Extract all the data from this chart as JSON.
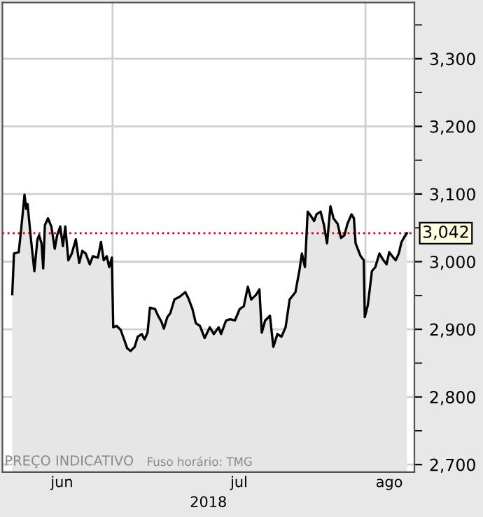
{
  "chart_data": {
    "type": "area",
    "x": [
      "2018-06-18T17:00",
      "2018-06-18T22:00",
      "2018-06-19T12:00",
      "2018-06-19T19:00",
      "2018-06-20T05:00",
      "2018-06-20T10:00",
      "2018-06-20T14:00",
      "2018-06-21T00:00",
      "2018-06-21T10:00",
      "2018-06-21T19:00",
      "2018-06-22T00:00",
      "2018-06-22T07:00",
      "2018-06-22T12:00",
      "2018-06-22T17:00",
      "2018-06-23T02:00",
      "2018-06-23T12:00",
      "2018-06-23T22:00",
      "2018-06-24T05:00",
      "2018-06-24T14:00",
      "2018-06-24T22:00",
      "2018-06-25T05:00",
      "2018-06-25T14:00",
      "2018-06-26T00:00",
      "2018-06-26T12:00",
      "2018-06-26T22:00",
      "2018-06-27T07:00",
      "2018-06-27T17:00",
      "2018-06-28T05:00",
      "2018-06-28T14:00",
      "2018-06-29T05:00",
      "2018-06-29T14:00",
      "2018-06-29T22:00",
      "2018-06-30T07:00",
      "2018-06-30T14:00",
      "2018-06-30T22:00",
      "2018-07-01T02:00",
      "2018-07-01T12:00",
      "2018-07-02T00:00",
      "2018-07-02T10:00",
      "2018-07-02T19:00",
      "2018-07-03T05:00",
      "2018-07-03T17:00",
      "2018-07-04T02:00",
      "2018-07-04T14:00",
      "2018-07-04T22:00",
      "2018-07-05T07:00",
      "2018-07-05T14:00",
      "2018-07-06T05:00",
      "2018-07-06T14:00",
      "2018-07-07T00:00",
      "2018-07-07T07:00",
      "2018-07-07T17:00",
      "2018-07-08T02:00",
      "2018-07-08T14:00",
      "2018-07-09T05:00",
      "2018-07-09T22:00",
      "2018-07-10T07:00",
      "2018-07-10T19:00",
      "2018-07-11T05:00",
      "2018-07-11T17:00",
      "2018-07-12T07:00",
      "2018-07-12T22:00",
      "2018-07-13T10:00",
      "2018-07-14T00:00",
      "2018-07-14T07:00",
      "2018-07-14T22:00",
      "2018-07-15T10:00",
      "2018-07-16T00:00",
      "2018-07-16T14:00",
      "2018-07-17T02:00",
      "2018-07-17T14:00",
      "2018-07-18T00:00",
      "2018-07-18T14:00",
      "2018-07-19T00:00",
      "2018-07-19T07:00",
      "2018-07-19T17:00",
      "2018-07-20T07:00",
      "2018-07-20T17:00",
      "2018-07-21T05:00",
      "2018-07-21T17:00",
      "2018-07-22T05:00",
      "2018-07-22T17:00",
      "2018-07-23T10:00",
      "2018-07-23T22:00",
      "2018-07-24T05:00",
      "2018-07-24T14:00",
      "2018-07-24T22:00",
      "2018-07-25T07:00",
      "2018-07-25T17:00",
      "2018-07-26T00:00",
      "2018-07-26T12:00",
      "2018-07-26T22:00",
      "2018-07-27T07:00",
      "2018-07-27T17:00",
      "2018-07-28T02:00",
      "2018-07-28T14:00",
      "2018-07-29T00:00",
      "2018-07-29T10:00",
      "2018-07-29T19:00",
      "2018-07-30T07:00",
      "2018-07-30T14:00",
      "2018-07-30T19:00",
      "2018-07-31T10:00",
      "2018-07-31T19:00",
      "2018-07-31T22:00",
      "2018-08-01T07:00",
      "2018-08-01T19:00",
      "2018-08-02T05:00",
      "2018-08-02T17:00",
      "2018-08-03T05:00",
      "2018-08-03T14:00",
      "2018-08-03T22:00",
      "2018-08-04T07:00",
      "2018-08-04T17:00",
      "2018-08-05T02:00",
      "2018-08-05T10:00",
      "2018-08-05T19:00",
      "2018-08-06T02:00"
    ],
    "values": [
      2952,
      3012,
      3014,
      3047,
      3099,
      3078,
      3085,
      3033,
      2986,
      3033,
      3039,
      3027,
      2990,
      3054,
      3064,
      3052,
      3019,
      3039,
      3052,
      3023,
      3052,
      3002,
      3012,
      3033,
      2998,
      3016,
      3012,
      2996,
      3008,
      3006,
      3029,
      3002,
      3008,
      2992,
      3006,
      2903,
      2905,
      2899,
      2885,
      2872,
      2868,
      2874,
      2889,
      2893,
      2885,
      2895,
      2932,
      2930,
      2920,
      2911,
      2901,
      2918,
      2924,
      2944,
      2948,
      2955,
      2946,
      2930,
      2909,
      2905,
      2887,
      2903,
      2893,
      2903,
      2893,
      2913,
      2915,
      2913,
      2930,
      2934,
      2963,
      2944,
      2951,
      2959,
      2895,
      2913,
      2920,
      2874,
      2893,
      2889,
      2903,
      2944,
      2955,
      2988,
      3012,
      2992,
      3074,
      3068,
      3060,
      3070,
      3074,
      3054,
      3027,
      3082,
      3064,
      3056,
      3035,
      3039,
      3056,
      3070,
      3064,
      3027,
      3008,
      3002,
      2918,
      2936,
      2986,
      2992,
      3012,
      3002,
      2996,
      3014,
      3008,
      3002,
      3012,
      3029,
      3037,
      3042
    ],
    "color": "#000000",
    "xlim": [
      "2018-06-17T12:00",
      "2018-08-07T00:00"
    ],
    "ylim": [
      2689,
      3383
    ],
    "xticks": [
      {
        "value": "2018-06-24T19:00",
        "label": "jun"
      },
      {
        "value": "2018-07-16T12:00",
        "label": "jul"
      },
      {
        "value": "2018-08-03T22:00",
        "label": "ago"
      }
    ],
    "yticks": [
      {
        "value": 2700,
        "label": "2,700"
      },
      {
        "value": 2750,
        "label": null
      },
      {
        "value": 2800,
        "label": "2,800"
      },
      {
        "value": 2850,
        "label": null
      },
      {
        "value": 2900,
        "label": "2,900"
      },
      {
        "value": 2950,
        "label": null
      },
      {
        "value": 3000,
        "label": "3,000"
      },
      {
        "value": 3050,
        "label": null
      },
      {
        "value": 3100,
        "label": "3,100"
      },
      {
        "value": 3150,
        "label": null
      },
      {
        "value": 3200,
        "label": "3,200"
      },
      {
        "value": 3250,
        "label": null
      },
      {
        "value": 3300,
        "label": "3,300"
      },
      {
        "value": 3350,
        "label": null
      }
    ],
    "xlabel": "2018",
    "grid": true,
    "ref_lines": [
      {
        "axis": "y",
        "value": 3042,
        "label": "3,042",
        "color": "#cc0000",
        "line_style": "dotted"
      },
      {
        "axis": "x",
        "value": "2018-07-01",
        "color": "#d0d0d0",
        "line_style": "solid"
      },
      {
        "axis": "x",
        "value": "2018-08-01",
        "color": "#d0d0d0",
        "line_style": "solid"
      }
    ],
    "annotations": [
      "PREÇO INDICATIVO",
      "Fuso horário: TMG"
    ]
  }
}
